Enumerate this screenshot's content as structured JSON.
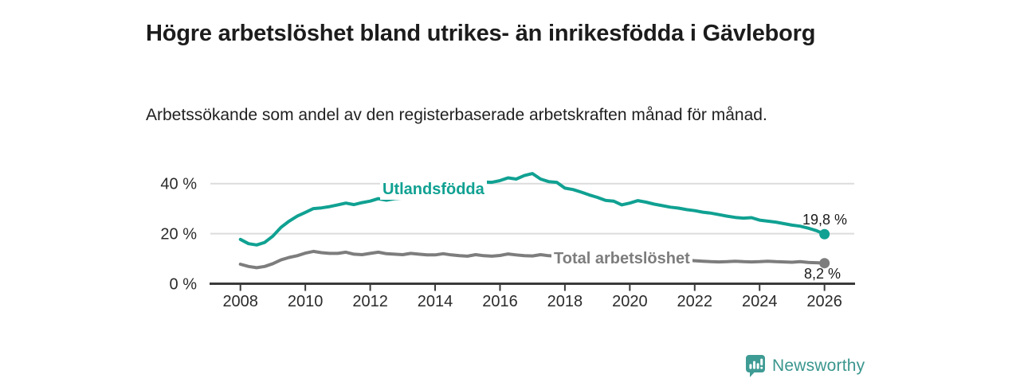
{
  "header": {
    "title": "Högre arbetslöshet bland utrikes- än inrikesfödda i Gävleborg",
    "subtitle": "Arbetssökande som andel av den registerbaserade arbetskraften månad för månad."
  },
  "chart_data": {
    "type": "line",
    "title": "Högre arbetslöshet bland utrikes- än inrikesfödda i Gävleborg",
    "subtitle": "Arbetssökande som andel av den registerbaserade arbetskraften månad för månad.",
    "unit": "%",
    "grid": "horizontal",
    "legend_position": "inline-labels",
    "xlim": [
      2007.1,
      2026.9
    ],
    "ylim": [
      0,
      47
    ],
    "yticks": [
      {
        "value": 0,
        "label": "0 %"
      },
      {
        "value": 20,
        "label": "20 %"
      },
      {
        "value": 40,
        "label": "40 %"
      }
    ],
    "xticks": [
      {
        "value": 2008,
        "label": "2008"
      },
      {
        "value": 2010,
        "label": "2010"
      },
      {
        "value": 2012,
        "label": "2012"
      },
      {
        "value": 2014,
        "label": "2014"
      },
      {
        "value": 2016,
        "label": "2016"
      },
      {
        "value": 2018,
        "label": "2018"
      },
      {
        "value": 2020,
        "label": "2020"
      },
      {
        "value": 2022,
        "label": "2022"
      },
      {
        "value": 2024,
        "label": "2024"
      },
      {
        "value": 2026,
        "label": "2026"
      }
    ],
    "x": [
      2008,
      2008.25,
      2008.5,
      2008.75,
      2009,
      2009.25,
      2009.5,
      2009.75,
      2010,
      2010.25,
      2010.5,
      2010.75,
      2011,
      2011.25,
      2011.5,
      2011.75,
      2012,
      2012.25,
      2012.5,
      2012.75,
      2013,
      2013.25,
      2013.5,
      2013.75,
      2014,
      2014.25,
      2014.5,
      2014.75,
      2015,
      2015.25,
      2015.5,
      2015.75,
      2016,
      2016.25,
      2016.5,
      2016.75,
      2017,
      2017.25,
      2017.5,
      2017.75,
      2018,
      2018.25,
      2018.5,
      2018.75,
      2019,
      2019.25,
      2019.5,
      2019.75,
      2020,
      2020.25,
      2020.5,
      2020.75,
      2021,
      2021.25,
      2021.5,
      2021.75,
      2022,
      2022.25,
      2022.5,
      2022.75,
      2023,
      2023.25,
      2023.5,
      2023.75,
      2024,
      2024.25,
      2024.5,
      2024.75,
      2025,
      2025.25,
      2025.5,
      2025.75,
      2026
    ],
    "series": [
      {
        "name": "Utlandsfödda",
        "color": "#10a192",
        "end_value": 19.8,
        "end_label": "19,8 %",
        "values": [
          17.7,
          16,
          15.5,
          16.5,
          19,
          22.5,
          25,
          27,
          28.5,
          30,
          30.3,
          30.8,
          31.5,
          32.2,
          31.6,
          32.4,
          33,
          34,
          33.4,
          34,
          34.2,
          34.8,
          34.5,
          35.2,
          36,
          37,
          37.6,
          38.4,
          39.5,
          40,
          40.6,
          40.5,
          41.2,
          42.3,
          41.8,
          43.2,
          44,
          41.8,
          40.8,
          40.5,
          38.2,
          37.6,
          36.6,
          35.5,
          34.5,
          33.3,
          33,
          31.5,
          32.2,
          33.2,
          32.6,
          31.8,
          31.2,
          30.6,
          30.2,
          29.6,
          29.2,
          28.6,
          28.2,
          27.6,
          27,
          26.5,
          26.2,
          26.4,
          25.4,
          25,
          24.6,
          24,
          23.4,
          23,
          22.2,
          21.2,
          19.8
        ]
      },
      {
        "name": "Total arbetslöshet",
        "color": "#7d7d7d",
        "end_value": 8.2,
        "end_label": "8,2 %",
        "values": [
          7.8,
          6.9,
          6.4,
          6.9,
          8,
          9.5,
          10.5,
          11.2,
          12.2,
          12.9,
          12.4,
          12.1,
          12.1,
          12.6,
          11.8,
          11.6,
          12.1,
          12.6,
          12,
          11.8,
          11.6,
          12.1,
          11.8,
          11.5,
          11.5,
          12,
          11.5,
          11.2,
          11,
          11.6,
          11.2,
          11,
          11.3,
          11.9,
          11.5,
          11.2,
          11.1,
          11.6,
          11.2,
          11,
          10.8,
          11.2,
          10.8,
          10.5,
          10.2,
          10.6,
          10.3,
          10,
          10.5,
          11,
          10.7,
          10.4,
          10.2,
          10,
          9.7,
          9.4,
          9.2,
          9,
          8.8,
          8.7,
          8.8,
          9,
          8.8,
          8.7,
          8.8,
          9,
          8.8,
          8.7,
          8.6,
          8.8,
          8.5,
          8.4,
          8.2
        ]
      }
    ],
    "colors": {
      "grid": "#dcdcdc",
      "axis": "#3a3a3a",
      "tick_text": "#2b2b2b"
    }
  },
  "footer": {
    "brand": "Newsworthy",
    "brand_color": "#3a968e",
    "logo_icon": "bar-chart-speech-bubble-icon"
  }
}
